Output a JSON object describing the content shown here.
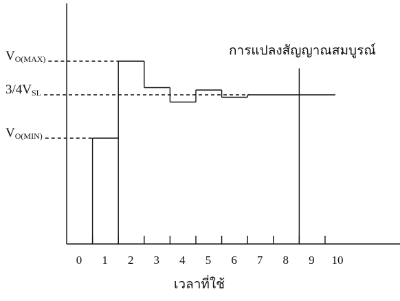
{
  "chart_data": {
    "type": "step",
    "x_label": "เวลาที่ใช้",
    "x": [
      1,
      2,
      3,
      4,
      5,
      6,
      7,
      10.4
    ],
    "values": [
      4.4,
      7.6,
      6.5,
      5.9,
      6.4,
      6.1,
      6.2,
      6.2
    ],
    "color": "#111111",
    "xlim": [
      0,
      12.9
    ],
    "ylim": [
      0,
      10
    ],
    "xticks": [
      0,
      1,
      2,
      3,
      4,
      5,
      6,
      7,
      8,
      9,
      10
    ],
    "reference_lines": [
      {
        "label": "V",
        "sub": "O(MAX)",
        "value": 7.6
      },
      {
        "label": "3/4V",
        "sub": "SL",
        "value": 6.2
      },
      {
        "label": "V",
        "sub": "O(MIN)",
        "value": 4.4
      }
    ],
    "completion": {
      "text": "การแปลงสัญญาณสมบูรณ์",
      "x": 9,
      "y": 7.3
    }
  }
}
